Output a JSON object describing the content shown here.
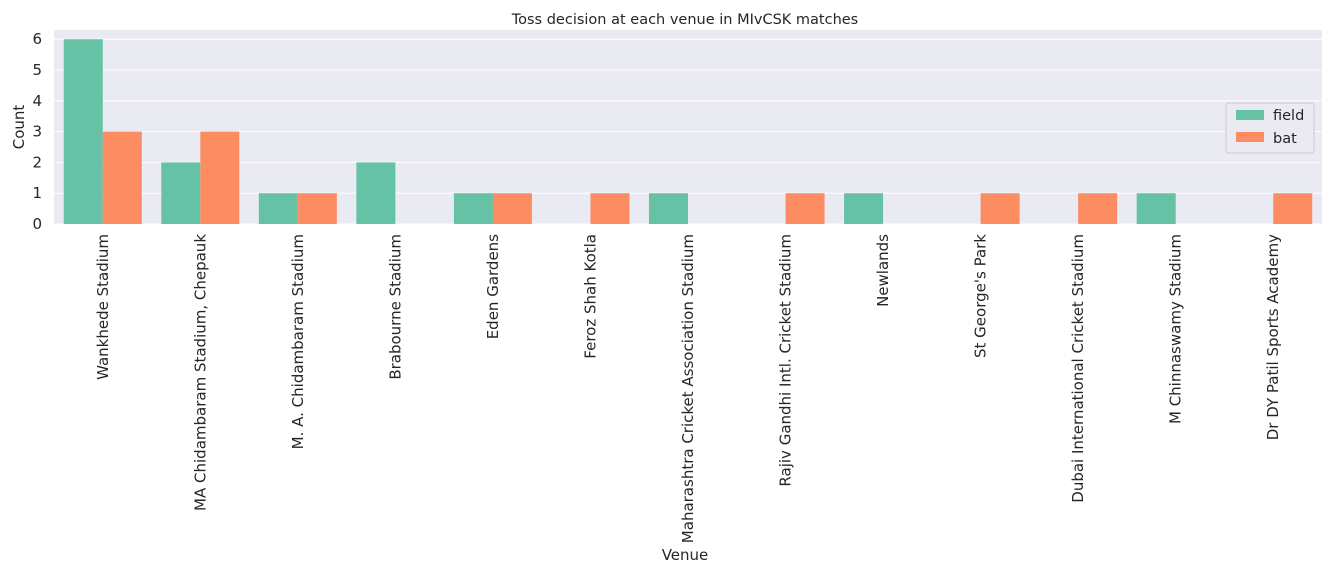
{
  "chart_data": {
    "type": "bar",
    "title": "Toss decision at each venue in MIvCSK matches",
    "xlabel": "Venue",
    "ylabel": "Count",
    "ylim": [
      0,
      6.3
    ],
    "yticks": [
      0,
      1,
      2,
      3,
      4,
      5,
      6
    ],
    "grid": true,
    "legend_position": "right",
    "categories": [
      "Wankhede Stadium",
      "MA Chidambaram Stadium, Chepauk",
      "M. A. Chidambaram Stadium",
      "Brabourne Stadium",
      "Eden Gardens",
      "Feroz Shah Kotla",
      "Maharashtra Cricket Association Stadium",
      "Rajiv Gandhi Intl. Cricket Stadium",
      "Newlands",
      "St George's Park",
      "Dubai International Cricket Stadium",
      "M Chinnaswamy Stadium",
      "Dr DY Patil Sports Academy"
    ],
    "series": [
      {
        "name": "field",
        "color": "#66c2a5",
        "values": [
          6,
          2,
          1,
          2,
          1,
          0,
          1,
          0,
          1,
          0,
          0,
          1,
          0
        ]
      },
      {
        "name": "bat",
        "color": "#fc8d62",
        "values": [
          3,
          3,
          1,
          0,
          1,
          1,
          0,
          1,
          0,
          1,
          1,
          0,
          1
        ]
      }
    ]
  },
  "style": {
    "plot_background": "#eaeaf2",
    "grid_color": "#ffffff",
    "text_color": "#262626"
  }
}
